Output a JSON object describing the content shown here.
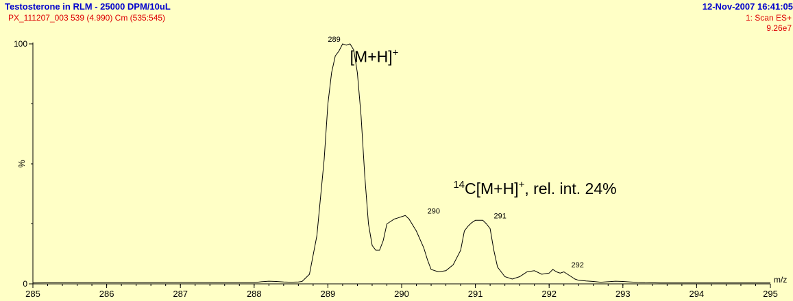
{
  "header": {
    "title": "Testosterone in RLM - 25000 DPM/10uL",
    "subtitle": "PX_111207_003 539 (4.990) Cm (535:545)",
    "datetime": "12-Nov-2007 16:41:05",
    "scan": "1: Scan ES+",
    "intensity": "9.26e7"
  },
  "colors": {
    "background": "#ffffc6",
    "header_blue": "#0000cc",
    "header_red": "#dd0000",
    "trace": "#000000"
  },
  "chart_data": {
    "type": "line",
    "xlabel": "m/z",
    "ylabel": "%",
    "xlim": [
      285,
      295
    ],
    "ylim": [
      0,
      100
    ],
    "x_ticks": [
      "285",
      "286",
      "287",
      "288",
      "289",
      "290",
      "291",
      "292",
      "293",
      "294",
      "295"
    ],
    "y_ticks": [
      "0",
      "100"
    ],
    "peak_labels": [
      {
        "x": 289.0,
        "y": 100,
        "text": "289"
      },
      {
        "x": 290.35,
        "y": 28.5,
        "text": "290"
      },
      {
        "x": 291.25,
        "y": 26.5,
        "text": "291"
      },
      {
        "x": 292.3,
        "y": 6,
        "text": "292"
      }
    ],
    "annotations": [
      {
        "id": "mh",
        "x": 289.3,
        "y": 92.5,
        "base": "[M+H]",
        "sup": "+",
        "pre_sup": "",
        "tail": ""
      },
      {
        "id": "c14",
        "x": 290.7,
        "y": 37.5,
        "pre_sup": "14",
        "base": "C[M+H]",
        "sup": "+",
        "tail": ", rel. int. 24%"
      }
    ],
    "series": [
      {
        "x": [
          285.0,
          285.5,
          286.0,
          286.5,
          287.0,
          287.5,
          288.0,
          288.1,
          288.2,
          288.3,
          288.4,
          288.5,
          288.6,
          288.65,
          288.75,
          288.85,
          288.95,
          289.0,
          289.05,
          289.1,
          289.15,
          289.2,
          289.25,
          289.3,
          289.35,
          289.4,
          289.45,
          289.5,
          289.55,
          289.6,
          289.65,
          289.7,
          289.75,
          289.8,
          289.85,
          289.9,
          289.95,
          290.0,
          290.05,
          290.1,
          290.2,
          290.3,
          290.35,
          290.4,
          290.5,
          290.6,
          290.7,
          290.8,
          290.85,
          290.9,
          290.95,
          291.0,
          291.1,
          291.15,
          291.2,
          291.25,
          291.3,
          291.4,
          291.5,
          291.6,
          291.7,
          291.8,
          291.9,
          292.0,
          292.05,
          292.1,
          292.15,
          292.2,
          292.25,
          292.3,
          292.35,
          292.4,
          292.5,
          292.6,
          292.7,
          292.8,
          292.9,
          293.0,
          293.1,
          293.2,
          293.3,
          293.5,
          293.7,
          294.0,
          294.5,
          295.0
        ],
        "y": [
          0.4,
          0.5,
          0.5,
          0.5,
          0.6,
          0.5,
          0.5,
          0.9,
          1.1,
          1.0,
          0.8,
          0.7,
          0.8,
          1.0,
          4.0,
          20.0,
          52.0,
          75.0,
          88.0,
          95.0,
          97.0,
          100.0,
          99.5,
          100.0,
          97.5,
          88.0,
          70.0,
          45.0,
          25.0,
          16.0,
          14.0,
          14.0,
          18.0,
          25.0,
          26.0,
          27.0,
          27.5,
          28.0,
          28.5,
          27.0,
          22.0,
          15.0,
          10.0,
          6.0,
          5.0,
          5.5,
          8.0,
          14.0,
          22.0,
          24.0,
          25.5,
          26.5,
          26.5,
          25.0,
          23.0,
          14.0,
          7.0,
          3.0,
          2.0,
          3.0,
          5.0,
          5.5,
          4.0,
          4.5,
          6.0,
          5.0,
          4.5,
          5.0,
          4.0,
          3.0,
          2.0,
          1.5,
          1.2,
          1.0,
          0.7,
          0.9,
          1.1,
          1.0,
          0.8,
          0.6,
          0.5,
          0.4,
          0.4,
          0.4,
          0.4,
          0.4
        ]
      }
    ]
  }
}
